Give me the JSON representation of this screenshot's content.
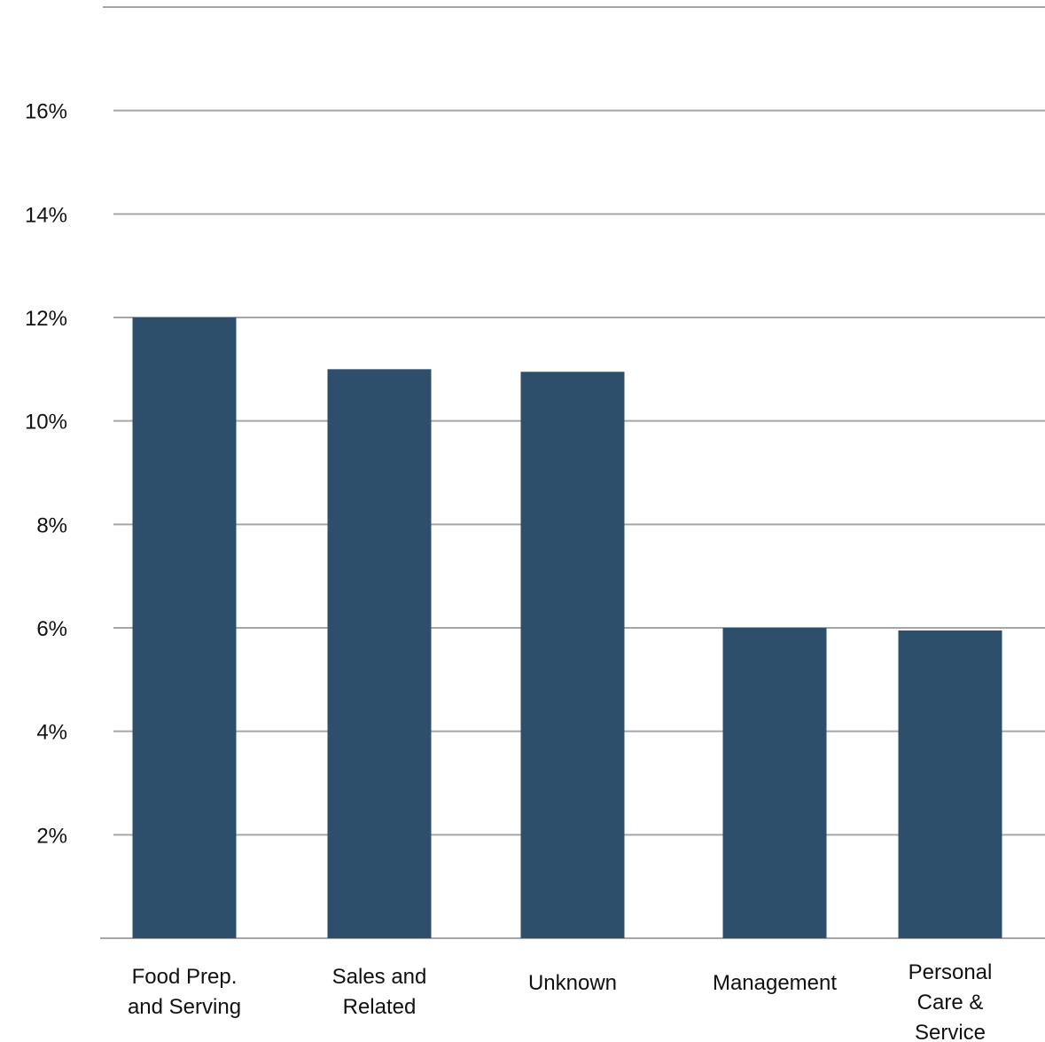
{
  "chart_data": {
    "type": "bar",
    "categories": [
      [
        "Food Prep.",
        "and Serving"
      ],
      [
        "Sales and",
        "Related"
      ],
      [
        "Unknown"
      ],
      [
        "Management"
      ],
      [
        "Personal",
        "Care &",
        "Service"
      ]
    ],
    "values": [
      12.0,
      11.0,
      10.95,
      6.0,
      5.95
    ],
    "unit": "%",
    "ylim": [
      0,
      18
    ],
    "yticks": [
      {
        "value": 2,
        "label": "2%"
      },
      {
        "value": 4,
        "label": "4%"
      },
      {
        "value": 6,
        "label": "6%"
      },
      {
        "value": 8,
        "label": "8%"
      },
      {
        "value": 10,
        "label": "10%"
      },
      {
        "value": 12,
        "label": "12%"
      },
      {
        "value": 14,
        "label": "14%"
      },
      {
        "value": 16,
        "label": "16%"
      }
    ],
    "grid": true,
    "legend": "none",
    "bar_color": "#2e4f6b",
    "grid_color": "#a6a6a6"
  }
}
